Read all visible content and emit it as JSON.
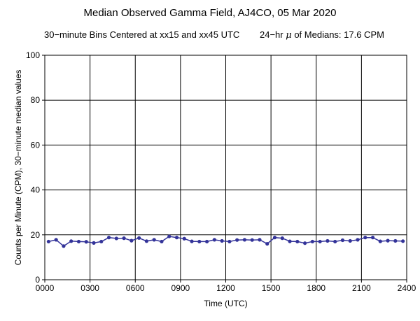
{
  "chart_data": {
    "type": "line",
    "title": "Median Observed Gamma Field, AJ4CO, 05 Mar 2020",
    "subtitle_left": "30−minute Bins Centered at xx15 and xx45 UTC",
    "subtitle_right_prefix": "24−hr",
    "subtitle_right_symbol": "μ",
    "subtitle_right_suffix": "of Medians: 17.6 CPM",
    "xlabel": "Time (UTC)",
    "ylabel": "Counts per Minute (CPM), 30−minute median values",
    "xlim": [
      0,
      24
    ],
    "ylim": [
      0,
      100
    ],
    "grid": true,
    "x_ticks": [
      {
        "value": 0,
        "label": "0000"
      },
      {
        "value": 3,
        "label": "0300"
      },
      {
        "value": 6,
        "label": "0600"
      },
      {
        "value": 9,
        "label": "0900"
      },
      {
        "value": 12,
        "label": "1200"
      },
      {
        "value": 15,
        "label": "1500"
      },
      {
        "value": 18,
        "label": "1800"
      },
      {
        "value": 21,
        "label": "2100"
      },
      {
        "value": 24,
        "label": "2400"
      }
    ],
    "y_ticks": [
      0,
      20,
      40,
      60,
      80,
      100
    ],
    "series": [
      {
        "color": "#333399",
        "x": [
          0.25,
          0.75,
          1.25,
          1.75,
          2.25,
          2.75,
          3.25,
          3.75,
          4.25,
          4.75,
          5.25,
          5.75,
          6.25,
          6.75,
          7.25,
          7.75,
          8.25,
          8.75,
          9.25,
          9.75,
          10.25,
          10.75,
          11.25,
          11.75,
          12.25,
          12.75,
          13.25,
          13.75,
          14.25,
          14.75,
          15.25,
          15.75,
          16.25,
          16.75,
          17.25,
          17.75,
          18.25,
          18.75,
          19.25,
          19.75,
          20.25,
          20.75,
          21.25,
          21.75,
          22.25,
          22.75,
          23.25,
          23.75
        ],
        "values": [
          17.0,
          17.8,
          15.0,
          17.2,
          17.0,
          16.9,
          16.4,
          17.0,
          18.8,
          18.4,
          18.5,
          17.4,
          18.6,
          17.2,
          17.8,
          17.0,
          19.3,
          18.8,
          18.3,
          17.1,
          17.0,
          17.0,
          17.8,
          17.3,
          17.0,
          17.7,
          17.8,
          17.7,
          17.8,
          16.0,
          18.8,
          18.5,
          17.1,
          17.0,
          16.3,
          17.0,
          17.0,
          17.3,
          17.0,
          17.6,
          17.3,
          17.8,
          18.8,
          18.8,
          17.1,
          17.4,
          17.3,
          17.2
        ]
      }
    ]
  }
}
